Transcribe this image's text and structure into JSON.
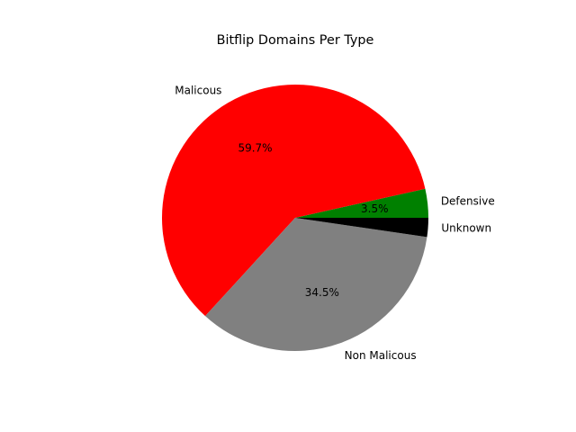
{
  "chart_data": {
    "type": "pie",
    "title": "Bitflip Domains Per Type",
    "slices": [
      {
        "label": "Defensive",
        "value": 3.5,
        "pct_label": "3.5%",
        "color": "#008000"
      },
      {
        "label": "Malicous",
        "value": 59.7,
        "pct_label": "59.7%",
        "color": "#ff0000"
      },
      {
        "label": "Non Malicous",
        "value": 34.5,
        "pct_label": "34.5%",
        "color": "#808080"
      },
      {
        "label": "Unknown",
        "value": 2.3,
        "pct_label": "",
        "color": "#000000"
      }
    ],
    "legend": "none"
  }
}
